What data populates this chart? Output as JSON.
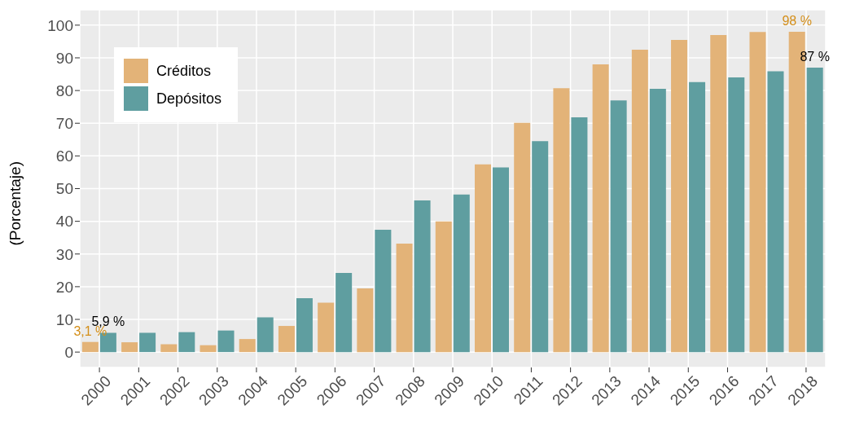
{
  "chart_data": {
    "type": "bar",
    "ylabel": "(Porcentaje)",
    "categories": [
      "2000",
      "2001",
      "2002",
      "2003",
      "2004",
      "2005",
      "2006",
      "2007",
      "2008",
      "2009",
      "2010",
      "2011",
      "2012",
      "2013",
      "2014",
      "2015",
      "2016",
      "2017",
      "2018"
    ],
    "series": [
      {
        "name": "Créditos",
        "color": "#e3b378",
        "values": [
          3.1,
          3.0,
          2.4,
          2.1,
          4.0,
          8.0,
          15.1,
          19.5,
          33.2,
          40.0,
          57.4,
          70.1,
          80.7,
          88.0,
          92.5,
          95.5,
          97.0,
          97.9,
          98
        ],
        "value_labels": [
          "3,1 %",
          null,
          null,
          null,
          null,
          null,
          null,
          null,
          null,
          null,
          null,
          null,
          null,
          null,
          null,
          null,
          null,
          null,
          "98 %"
        ]
      },
      {
        "name": "Depósitos",
        "color": "#5f9ea0",
        "values": [
          5.9,
          5.9,
          6.1,
          6.6,
          10.6,
          16.5,
          24.2,
          37.4,
          46.4,
          48.2,
          56.5,
          64.5,
          71.8,
          77.0,
          80.5,
          82.6,
          84.0,
          85.9,
          87
        ],
        "value_labels": [
          "5,9 %",
          null,
          null,
          null,
          null,
          null,
          null,
          null,
          null,
          null,
          null,
          null,
          null,
          null,
          null,
          null,
          null,
          null,
          "87 %"
        ]
      }
    ],
    "ylim": [
      -4.7,
      104.7
    ],
    "yticks": [
      0,
      10,
      20,
      30,
      40,
      50,
      60,
      70,
      80,
      90,
      100
    ],
    "grid": true,
    "legend": "top left"
  }
}
